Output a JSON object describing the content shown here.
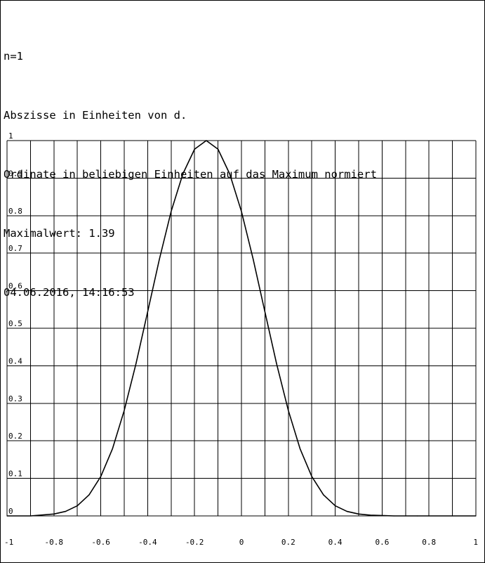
{
  "header": {
    "line1": "n=1",
    "line2": "Abszisse in Einheiten von d.",
    "line3": "Ordinate in beliebigen Einheiten auf das Maximum normiert",
    "line4": "Maximalwert: 1.39",
    "line5": "04.06.2016, 14:16:53"
  },
  "chart_data": {
    "type": "line",
    "title": "",
    "xlabel": "",
    "ylabel": "",
    "xlim": [
      -1,
      1
    ],
    "ylim": [
      0,
      1
    ],
    "grid": true,
    "x_ticks": [
      -1,
      -0.8,
      -0.6,
      -0.4,
      -0.2,
      0,
      0.2,
      0.4,
      0.6,
      0.8,
      1
    ],
    "x_tick_labels": [
      "-1",
      "-0.8",
      "-0.6",
      "-0.4",
      "-0.2",
      "0",
      "0.2",
      "0.4",
      "0.6",
      "0.8",
      "1"
    ],
    "y_ticks": [
      0,
      0.1,
      0.2,
      0.3,
      0.4,
      0.5,
      0.6,
      0.7,
      0.8,
      0.9,
      1
    ],
    "y_tick_labels": [
      "0",
      "0.1",
      "0.2",
      "0.3",
      "0.4",
      "0.5",
      "0.6",
      "0.7",
      "0.8",
      "0.9",
      "1"
    ],
    "x_gridlines": [
      -1,
      -0.9,
      -0.8,
      -0.7,
      -0.6,
      -0.5,
      -0.4,
      -0.3,
      -0.2,
      -0.1,
      0,
      0.1,
      0.2,
      0.3,
      0.4,
      0.5,
      0.6,
      0.7,
      0.8,
      0.9,
      1
    ],
    "series": [
      {
        "color": "#000000",
        "x": [
          -1,
          -0.9,
          -0.8,
          -0.75,
          -0.7,
          -0.65,
          -0.6,
          -0.55,
          -0.5,
          -0.45,
          -0.4,
          -0.35,
          -0.3,
          -0.25,
          -0.2,
          -0.15,
          -0.1,
          -0.05,
          0,
          0.05,
          0.1,
          0.15,
          0.2,
          0.25,
          0.3,
          0.35,
          0.4,
          0.45,
          0.5,
          0.55,
          0.6,
          0.65,
          0.7,
          0.75,
          0.8,
          0.9,
          1
        ],
        "y": [
          0.0,
          0.0,
          0.005,
          0.012,
          0.027,
          0.056,
          0.105,
          0.179,
          0.281,
          0.405,
          0.544,
          0.684,
          0.811,
          0.911,
          0.977,
          1.0,
          0.977,
          0.911,
          0.811,
          0.684,
          0.544,
          0.405,
          0.281,
          0.179,
          0.105,
          0.056,
          0.027,
          0.012,
          0.005,
          0.002,
          0.001,
          0.0,
          0.0,
          0.0,
          0.0,
          0.0,
          0.0
        ]
      }
    ]
  }
}
